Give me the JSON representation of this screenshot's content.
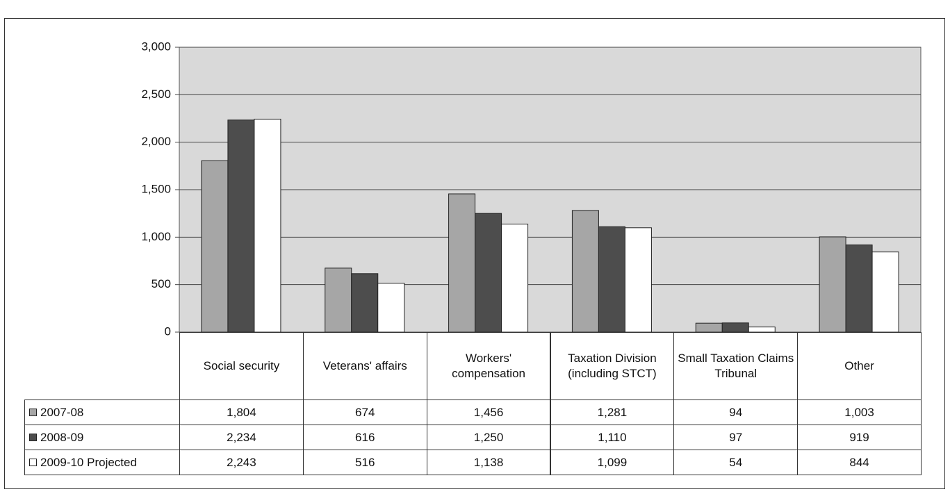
{
  "chart_data": {
    "type": "bar",
    "categories": [
      "Social security",
      "Veterans' affairs",
      "Workers' compensation",
      "Taxation Division (including STCT)",
      "Small Taxation Claims Tribunal",
      "Other"
    ],
    "series": [
      {
        "name": "2007-08",
        "color": "#a6a6a6",
        "values": [
          1804,
          674,
          1456,
          1281,
          94,
          1003
        ],
        "value_labels": [
          "1,804",
          "674",
          "1,456",
          "1,281",
          "94",
          "1,003"
        ]
      },
      {
        "name": "2008-09",
        "color": "#4d4d4d",
        "values": [
          2234,
          616,
          1250,
          1110,
          97,
          919
        ],
        "value_labels": [
          "2,234",
          "616",
          "1,250",
          "1,110",
          "97",
          "919"
        ]
      },
      {
        "name": "2009-10 Projected",
        "color": "#ffffff",
        "values": [
          2243,
          516,
          1138,
          1099,
          54,
          844
        ],
        "value_labels": [
          "2,243",
          "516",
          "1,138",
          "1,099",
          "54",
          "844"
        ]
      }
    ],
    "ylim": [
      0,
      3000
    ],
    "yticks": [
      0,
      500,
      {
        "value": 1000,
        "label": "1,000"
      },
      {
        "value": 1500,
        "label": "1,500"
      },
      {
        "value": 2000,
        "label": "2,000"
      },
      {
        "value": 2500,
        "label": "2,500"
      },
      {
        "value": 3000,
        "label": "3,000"
      }
    ],
    "grid": true
  }
}
